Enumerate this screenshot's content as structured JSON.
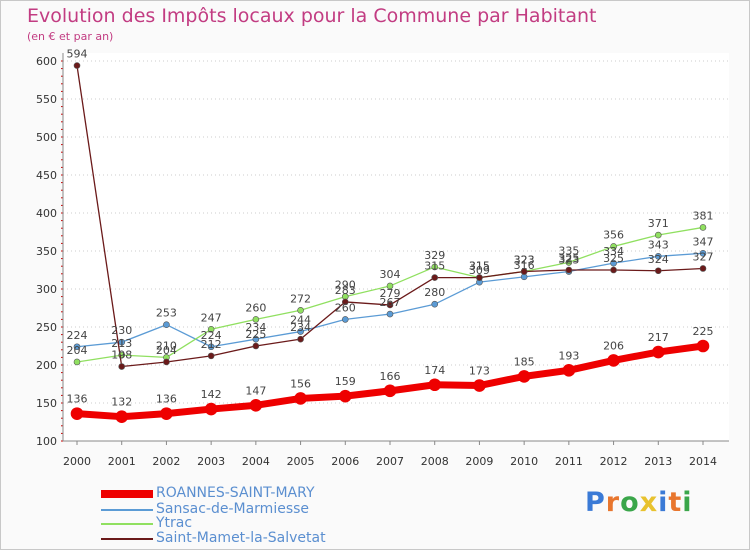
{
  "title": "Evolution des Impôts locaux pour la Commune par Habitant",
  "subtitle": "(en € et par an)",
  "logo": {
    "text": "Proxiti",
    "letters": [
      "P",
      "r",
      "o",
      "x",
      "i",
      "t",
      "i"
    ],
    "colors": [
      "#3a7ad6",
      "#e8762e",
      "#3aa64a",
      "#e8c22e",
      "#3a7ad6",
      "#e8762e",
      "#3aa64a"
    ]
  },
  "chart_data": {
    "type": "line",
    "title": "Evolution des Impôts locaux pour la Commune par Habitant",
    "ylabel": "(en € et par an)",
    "xlabel": "",
    "x": [
      2000,
      2001,
      2002,
      2003,
      2004,
      2005,
      2006,
      2007,
      2008,
      2009,
      2010,
      2011,
      2012,
      2013,
      2014
    ],
    "ylim": [
      100,
      600
    ],
    "yticks": [
      100,
      150,
      200,
      250,
      300,
      350,
      400,
      450,
      500,
      550,
      600
    ],
    "grid": "horizontal dotted",
    "legend_position": "bottom-left",
    "series": [
      {
        "name": "ROANNES-SAINT-MARY",
        "color": "#ee0000",
        "values": [
          136,
          132,
          136,
          142,
          147,
          156,
          159,
          166,
          174,
          173,
          185,
          193,
          206,
          217,
          225
        ]
      },
      {
        "name": "Sansac-de-Marmiesse",
        "color": "#5b9bd5",
        "values": [
          224,
          230,
          253,
          224,
          234,
          244,
          260,
          267,
          280,
          309,
          316,
          323,
          334,
          343,
          347
        ]
      },
      {
        "name": "Ytrac",
        "color": "#90e060",
        "values": [
          204,
          213,
          210,
          247,
          260,
          272,
          290,
          304,
          329,
          315,
          323,
          335,
          356,
          371,
          381
        ]
      },
      {
        "name": "Saint-Mamet-la-Salvetat",
        "color": "#6b1a1a",
        "values": [
          594,
          198,
          204,
          212,
          225,
          234,
          283,
          279,
          315,
          315,
          323,
          325,
          325,
          324,
          327
        ]
      }
    ]
  }
}
